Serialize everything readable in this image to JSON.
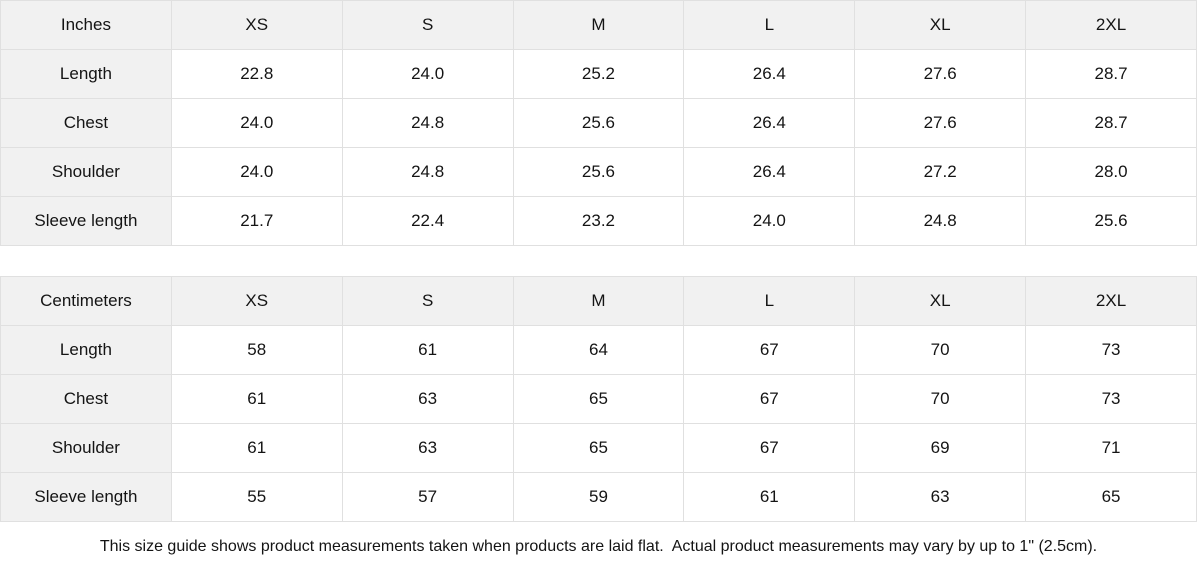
{
  "table_inches": {
    "unit_label": "Inches",
    "sizes": [
      "XS",
      "S",
      "M",
      "L",
      "XL",
      "2XL"
    ],
    "rows": [
      {
        "label": "Length",
        "values": [
          "22.8",
          "24.0",
          "25.2",
          "26.4",
          "27.6",
          "28.7"
        ]
      },
      {
        "label": "Chest",
        "values": [
          "24.0",
          "24.8",
          "25.6",
          "26.4",
          "27.6",
          "28.7"
        ]
      },
      {
        "label": "Shoulder",
        "values": [
          "24.0",
          "24.8",
          "25.6",
          "26.4",
          "27.2",
          "28.0"
        ]
      },
      {
        "label": "Sleeve length",
        "values": [
          "21.7",
          "22.4",
          "23.2",
          "24.0",
          "24.8",
          "25.6"
        ]
      }
    ]
  },
  "table_centimeters": {
    "unit_label": "Centimeters",
    "sizes": [
      "XS",
      "S",
      "M",
      "L",
      "XL",
      "2XL"
    ],
    "rows": [
      {
        "label": "Length",
        "values": [
          "58",
          "61",
          "64",
          "67",
          "70",
          "73"
        ]
      },
      {
        "label": "Chest",
        "values": [
          "61",
          "63",
          "65",
          "67",
          "70",
          "73"
        ]
      },
      {
        "label": "Shoulder",
        "values": [
          "61",
          "63",
          "65",
          "67",
          "69",
          "71"
        ]
      },
      {
        "label": "Sleeve length",
        "values": [
          "55",
          "57",
          "59",
          "61",
          "63",
          "65"
        ]
      }
    ]
  },
  "footer": {
    "note": "This size guide shows product measurements taken when products are laid flat.  Actual product measurements may vary by up to 1\" (2.5cm)."
  },
  "colors": {
    "header_bg": "#f1f1f1",
    "border": "#e0e0e0",
    "text": "#141414"
  }
}
